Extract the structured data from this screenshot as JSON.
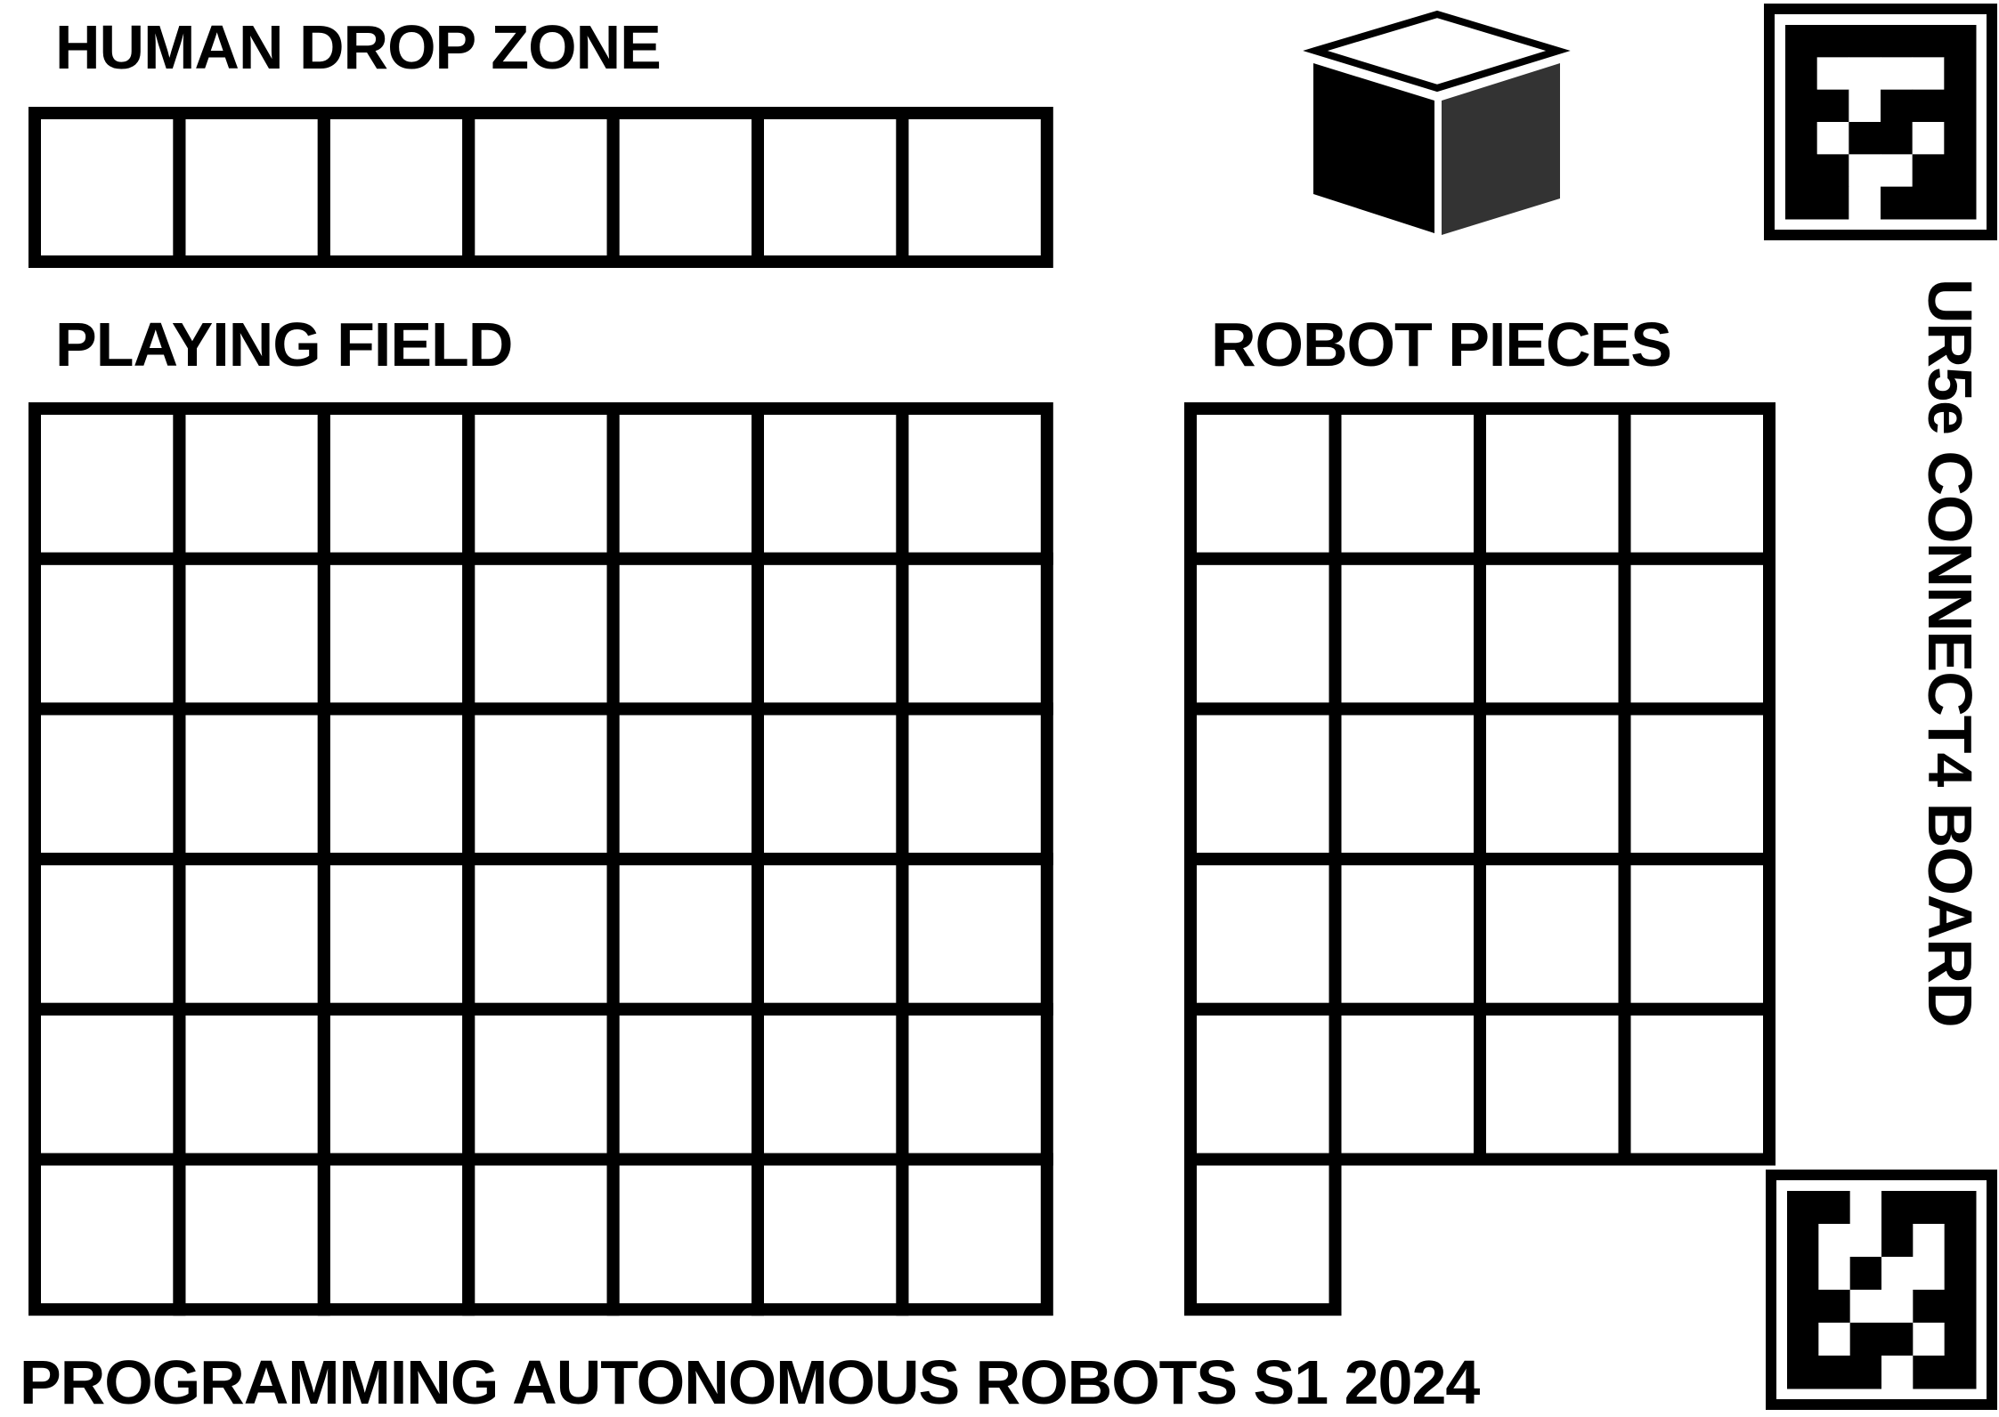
{
  "labels": {
    "human_drop_zone": "HUMAN DROP ZONE",
    "playing_field": "PLAYING FIELD",
    "robot_pieces": "ROBOT PIECES",
    "footer": "PROGRAMMING AUTONOMOUS ROBOTS S1 2024",
    "board_name": "UR5e CONNECT4 BOARD"
  },
  "grids": {
    "human_drop_zone": {
      "columns": 7,
      "rows": 1
    },
    "playing_field": {
      "columns": 7,
      "rows": 6
    },
    "robot_pieces": {
      "columns": 4,
      "rows": 5,
      "extra_bottom_left_cells": 1
    }
  },
  "icons": [
    "cube-icon",
    "aruco-marker-icon",
    "aruco-marker-icon"
  ],
  "colors": {
    "line": "#000000",
    "background": "#ffffff",
    "cube_side": "#333333"
  }
}
